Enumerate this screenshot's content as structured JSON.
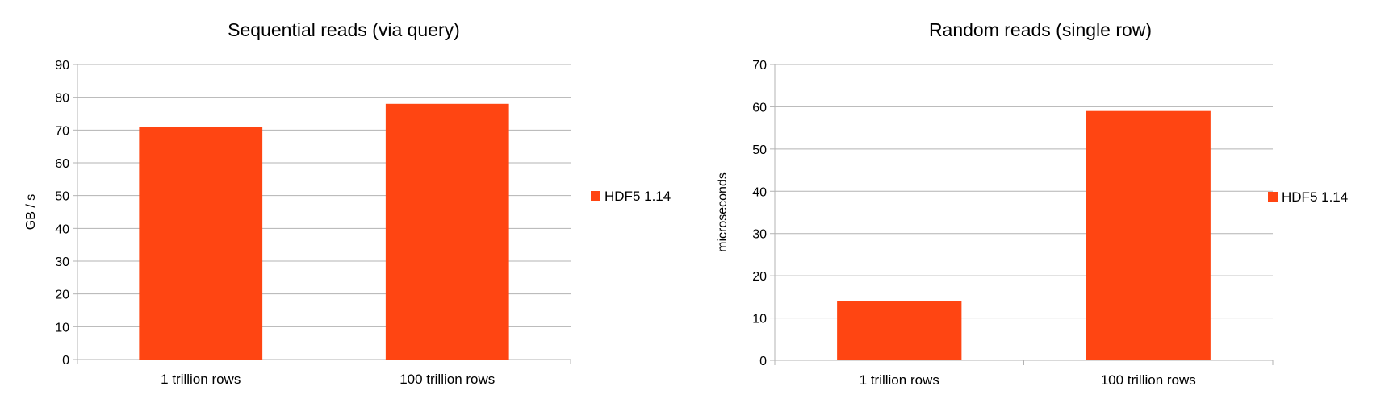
{
  "chart_data": [
    {
      "type": "bar",
      "title": "Sequential reads (via query)",
      "xlabel": "",
      "ylabel": "GB / s",
      "categories": [
        "1 trillion rows",
        "100 trillion rows"
      ],
      "series": [
        {
          "name": "HDF5 1.14",
          "values": [
            71,
            78
          ]
        }
      ],
      "ylim": [
        0,
        90
      ],
      "yticks": [
        0,
        10,
        20,
        30,
        40,
        50,
        60,
        70,
        80,
        90
      ],
      "grid": true,
      "legend": "right",
      "color": "#FF4512"
    },
    {
      "type": "bar",
      "title": "Random reads (single row)",
      "xlabel": "",
      "ylabel": "microseconds",
      "categories": [
        "1 trillion rows",
        "100 trillion rows"
      ],
      "series": [
        {
          "name": "HDF5 1.14",
          "values": [
            14,
            59
          ]
        }
      ],
      "ylim": [
        0,
        70
      ],
      "yticks": [
        0,
        10,
        20,
        30,
        40,
        50,
        60,
        70
      ],
      "grid": true,
      "legend": "right",
      "color": "#FF4512"
    }
  ]
}
